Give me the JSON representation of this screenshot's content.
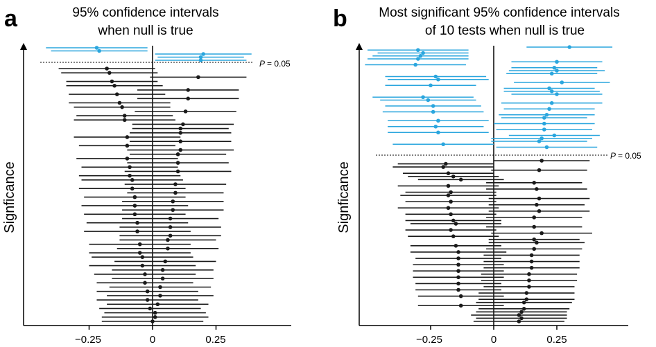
{
  "colors": {
    "significant": "#2aa6de",
    "nonsignificant": "#1a1a1a",
    "axis": "#000000"
  },
  "chart_data": [
    {
      "type": "interval",
      "panel_label": "a",
      "title_lines": [
        "95% confidence intervals",
        "when null is true"
      ],
      "ylabel": "Signficance",
      "x_ticks": [
        -0.25,
        0,
        0.25
      ],
      "x_tick_labels": [
        "−0.25",
        "0",
        "0.25"
      ],
      "xlim": [
        -0.5,
        0.45
      ],
      "threshold_label": "= 0.05",
      "threshold_symbol": "P",
      "significant_intervals": [
        {
          "mean": -0.22,
          "half": 0.2
        },
        {
          "mean": -0.21,
          "half": 0.19
        },
        {
          "mean": 0.2,
          "half": 0.19
        },
        {
          "mean": 0.19,
          "half": 0.17
        },
        {
          "mean": 0.19,
          "half": 0.18
        }
      ],
      "nonsignificant_means": [
        -0.18,
        -0.17,
        0.18,
        -0.16,
        -0.15,
        0.14,
        -0.14,
        0.14,
        -0.13,
        -0.12,
        0.13,
        -0.11,
        -0.11,
        0.12,
        0.11,
        0.11,
        -0.1,
        0.11,
        -0.1,
        0.11,
        0.1,
        -0.1,
        0.1,
        -0.09,
        0.1,
        -0.09,
        -0.08,
        0.09,
        -0.08,
        0.09,
        -0.07,
        0.08,
        -0.07,
        0.08,
        -0.07,
        0.07,
        -0.06,
        0.07,
        -0.06,
        0.07,
        0.06,
        -0.05,
        0.06,
        -0.05,
        -0.04,
        0.05,
        -0.04,
        0.04,
        -0.03,
        0.04,
        -0.03,
        0.03,
        -0.02,
        0.03,
        -0.02,
        0.02,
        -0.01,
        0.01,
        0.01,
        0.0
      ],
      "nonsignificant_half": [
        0.19,
        0.19,
        0.19,
        0.18,
        0.19,
        0.2,
        0.19,
        0.2,
        0.2,
        0.19,
        0.2,
        0.19,
        0.2,
        0.2,
        0.19,
        0.2,
        0.21,
        0.2,
        0.19,
        0.21,
        0.19,
        0.2,
        0.2,
        0.19,
        0.21,
        0.2,
        0.2,
        0.2,
        0.21,
        0.19,
        0.2,
        0.2,
        0.21,
        0.2,
        0.2,
        0.19,
        0.2,
        0.2,
        0.21,
        0.2,
        0.19,
        0.2,
        0.2,
        0.2,
        0.2,
        0.2,
        0.21,
        0.2,
        0.2,
        0.2,
        0.19,
        0.2,
        0.2,
        0.21,
        0.2,
        0.2,
        0.2,
        0.2,
        0.21,
        0.2
      ]
    },
    {
      "type": "interval",
      "panel_label": "b",
      "title_lines": [
        "Most significant 95% confidence intervals",
        "of 10 tests when null is true"
      ],
      "ylabel": "Signficance",
      "x_ticks": [
        -0.25,
        0,
        0.25
      ],
      "x_tick_labels": [
        "−0.25",
        "0",
        "0.25"
      ],
      "xlim": [
        -0.5,
        0.45
      ],
      "threshold_label": "= 0.05",
      "threshold_symbol": "P",
      "significant_intervals": [
        {
          "mean": 0.3,
          "half": 0.17
        },
        {
          "mean": -0.3,
          "half": 0.2
        },
        {
          "mean": -0.28,
          "half": 0.18
        },
        {
          "mean": -0.29,
          "half": 0.19
        },
        {
          "mean": -0.3,
          "half": 0.2
        },
        {
          "mean": 0.25,
          "half": 0.18
        },
        {
          "mean": -0.31,
          "half": 0.2
        },
        {
          "mean": 0.24,
          "half": 0.17
        },
        {
          "mean": 0.25,
          "half": 0.19
        },
        {
          "mean": 0.23,
          "half": 0.18
        },
        {
          "mean": -0.23,
          "half": 0.2
        },
        {
          "mean": -0.22,
          "half": 0.2
        },
        {
          "mean": 0.27,
          "half": 0.19
        },
        {
          "mean": -0.25,
          "half": 0.18
        },
        {
          "mean": 0.22,
          "half": 0.18
        },
        {
          "mean": 0.23,
          "half": 0.19
        },
        {
          "mean": 0.25,
          "half": 0.18
        },
        {
          "mean": -0.28,
          "half": 0.2
        },
        {
          "mean": -0.26,
          "half": 0.19
        },
        {
          "mean": 0.23,
          "half": 0.2
        },
        {
          "mean": -0.24,
          "half": 0.19
        },
        {
          "mean": 0.22,
          "half": 0.18
        },
        {
          "mean": -0.24,
          "half": 0.2
        },
        {
          "mean": 0.21,
          "half": 0.19
        },
        {
          "mean": 0.2,
          "half": 0.17
        },
        {
          "mean": -0.22,
          "half": 0.2
        },
        {
          "mean": 0.2,
          "half": 0.2
        },
        {
          "mean": -0.23,
          "half": 0.19
        },
        {
          "mean": 0.2,
          "half": 0.19
        },
        {
          "mean": -0.22,
          "half": 0.2
        },
        {
          "mean": 0.24,
          "half": 0.18
        },
        {
          "mean": 0.19,
          "half": 0.2
        },
        {
          "mean": 0.18,
          "half": 0.19
        },
        {
          "mean": -0.2,
          "half": 0.2
        },
        {
          "mean": 0.21,
          "half": 0.2
        }
      ],
      "nonsignificant_means": [
        0.19,
        -0.19,
        -0.2,
        0.18,
        -0.18,
        -0.16,
        -0.13,
        0.16,
        -0.18,
        0.17,
        -0.17,
        -0.18,
        0.18,
        -0.17,
        0.17,
        -0.18,
        0.18,
        -0.17,
        0.16,
        -0.16,
        -0.15,
        0.16,
        -0.17,
        0.19,
        -0.16,
        0.16,
        0.17,
        -0.15,
        0.16,
        -0.14,
        0.15,
        -0.14,
        0.15,
        -0.14,
        0.15,
        -0.14,
        0.14,
        -0.14,
        0.14,
        -0.14,
        0.14,
        -0.14,
        0.13,
        -0.13,
        0.13,
        0.12,
        -0.13,
        0.12,
        0.11,
        0.1,
        0.11,
        0.1
      ],
      "nonsignificant_half": [
        0.19,
        0.19,
        0.2,
        0.19,
        0.18,
        0.18,
        0.17,
        0.19,
        0.2,
        0.2,
        0.18,
        0.19,
        0.2,
        0.18,
        0.19,
        0.2,
        0.2,
        0.18,
        0.19,
        0.19,
        0.18,
        0.19,
        0.18,
        0.2,
        0.18,
        0.18,
        0.19,
        0.18,
        0.19,
        0.19,
        0.19,
        0.17,
        0.19,
        0.18,
        0.19,
        0.18,
        0.19,
        0.18,
        0.19,
        0.17,
        0.18,
        0.17,
        0.19,
        0.17,
        0.19,
        0.19,
        0.17,
        0.18,
        0.18,
        0.19,
        0.18,
        0.18
      ]
    }
  ]
}
